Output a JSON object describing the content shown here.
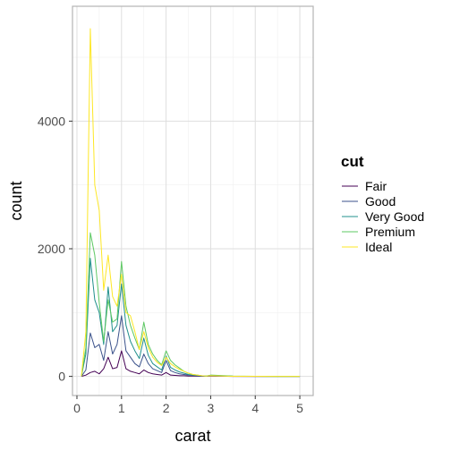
{
  "chart_data": {
    "type": "line",
    "xlabel": "carat",
    "ylabel": "count",
    "xlim": [
      -0.1,
      5.3
    ],
    "ylim": [
      -300,
      5800
    ],
    "x_ticks": [
      0,
      1,
      2,
      3,
      4,
      5
    ],
    "x_tick_labels": [
      "0",
      "1",
      "2",
      "3",
      "4",
      "5"
    ],
    "y_ticks": [
      0,
      2000,
      4000
    ],
    "y_tick_labels": [
      "0",
      "2000",
      "4000"
    ],
    "x_minor_ticks": [
      0.5,
      1.5,
      2.5,
      3.5,
      4.5
    ],
    "y_minor_ticks": [
      1000,
      3000,
      5000
    ],
    "grid": true,
    "legend": {
      "title": "cut",
      "position": "right"
    },
    "series": [
      {
        "name": "Fair",
        "color": "#440154",
        "x": [
          0.1,
          0.2,
          0.3,
          0.4,
          0.5,
          0.6,
          0.7,
          0.8,
          0.9,
          1.0,
          1.1,
          1.2,
          1.3,
          1.4,
          1.5,
          1.6,
          1.7,
          1.8,
          1.9,
          2.0,
          2.1,
          2.2,
          2.3,
          2.4,
          2.5,
          2.6,
          2.7,
          2.8,
          2.9,
          3.0,
          3.5,
          4.0,
          4.5,
          5.0
        ],
        "y": [
          0,
          20,
          60,
          80,
          40,
          120,
          300,
          120,
          140,
          400,
          120,
          80,
          60,
          40,
          100,
          60,
          40,
          30,
          20,
          60,
          20,
          15,
          10,
          10,
          5,
          5,
          3,
          2,
          1,
          5,
          0,
          0,
          0,
          0
        ]
      },
      {
        "name": "Good",
        "color": "#3B528B",
        "x": [
          0.1,
          0.2,
          0.3,
          0.4,
          0.5,
          0.6,
          0.7,
          0.8,
          0.9,
          1.0,
          1.1,
          1.2,
          1.3,
          1.4,
          1.5,
          1.6,
          1.7,
          1.8,
          1.9,
          2.0,
          2.1,
          2.2,
          2.3,
          2.4,
          2.5,
          2.6,
          2.7,
          2.8,
          2.9,
          3.0,
          3.5,
          4.0,
          4.5,
          5.0
        ],
        "y": [
          0,
          100,
          680,
          450,
          500,
          250,
          700,
          350,
          500,
          950,
          400,
          300,
          200,
          150,
          350,
          200,
          120,
          90,
          60,
          250,
          90,
          60,
          40,
          30,
          20,
          15,
          10,
          5,
          3,
          10,
          2,
          0,
          0,
          0
        ]
      },
      {
        "name": "Very Good",
        "color": "#21908C",
        "x": [
          0.1,
          0.2,
          0.3,
          0.4,
          0.5,
          0.6,
          0.7,
          0.8,
          0.9,
          1.0,
          1.1,
          1.2,
          1.3,
          1.4,
          1.5,
          1.6,
          1.7,
          1.8,
          1.9,
          2.0,
          2.1,
          2.2,
          2.3,
          2.4,
          2.5,
          2.6,
          2.7,
          2.8,
          2.9,
          3.0,
          3.5,
          4.0,
          4.5,
          5.0
        ],
        "y": [
          0,
          350,
          1850,
          1200,
          1000,
          500,
          1400,
          700,
          800,
          1450,
          800,
          550,
          400,
          280,
          600,
          330,
          200,
          150,
          100,
          320,
          140,
          100,
          70,
          50,
          30,
          20,
          15,
          8,
          5,
          15,
          3,
          1,
          0,
          0
        ]
      },
      {
        "name": "Premium",
        "color": "#5DC863",
        "x": [
          0.1,
          0.2,
          0.3,
          0.4,
          0.5,
          0.6,
          0.7,
          0.8,
          0.9,
          1.0,
          1.1,
          1.2,
          1.3,
          1.4,
          1.5,
          1.6,
          1.7,
          1.8,
          1.9,
          2.0,
          2.1,
          2.2,
          2.3,
          2.4,
          2.5,
          2.6,
          2.7,
          2.8,
          2.9,
          3.0,
          3.5,
          4.0,
          4.5,
          5.0
        ],
        "y": [
          0,
          450,
          2250,
          1900,
          1150,
          550,
          1200,
          850,
          900,
          1800,
          1100,
          800,
          600,
          420,
          850,
          500,
          350,
          250,
          180,
          400,
          250,
          180,
          130,
          80,
          50,
          30,
          20,
          10,
          5,
          20,
          5,
          2,
          0,
          1
        ]
      },
      {
        "name": "Ideal",
        "color": "#FDE725",
        "x": [
          0.1,
          0.2,
          0.3,
          0.4,
          0.5,
          0.6,
          0.7,
          0.8,
          0.9,
          1.0,
          1.1,
          1.2,
          1.3,
          1.4,
          1.5,
          1.6,
          1.7,
          1.8,
          1.9,
          2.0,
          2.1,
          2.2,
          2.3,
          2.4,
          2.5,
          2.6,
          2.7,
          2.8,
          2.9,
          3.0,
          3.5,
          4.0,
          4.5,
          5.0
        ],
        "y": [
          0,
          700,
          5450,
          3000,
          2600,
          1350,
          1900,
          1250,
          1100,
          1600,
          1000,
          950,
          700,
          420,
          700,
          450,
          300,
          220,
          170,
          300,
          200,
          150,
          110,
          80,
          50,
          30,
          20,
          10,
          5,
          10,
          2,
          1,
          0,
          0
        ]
      }
    ]
  }
}
